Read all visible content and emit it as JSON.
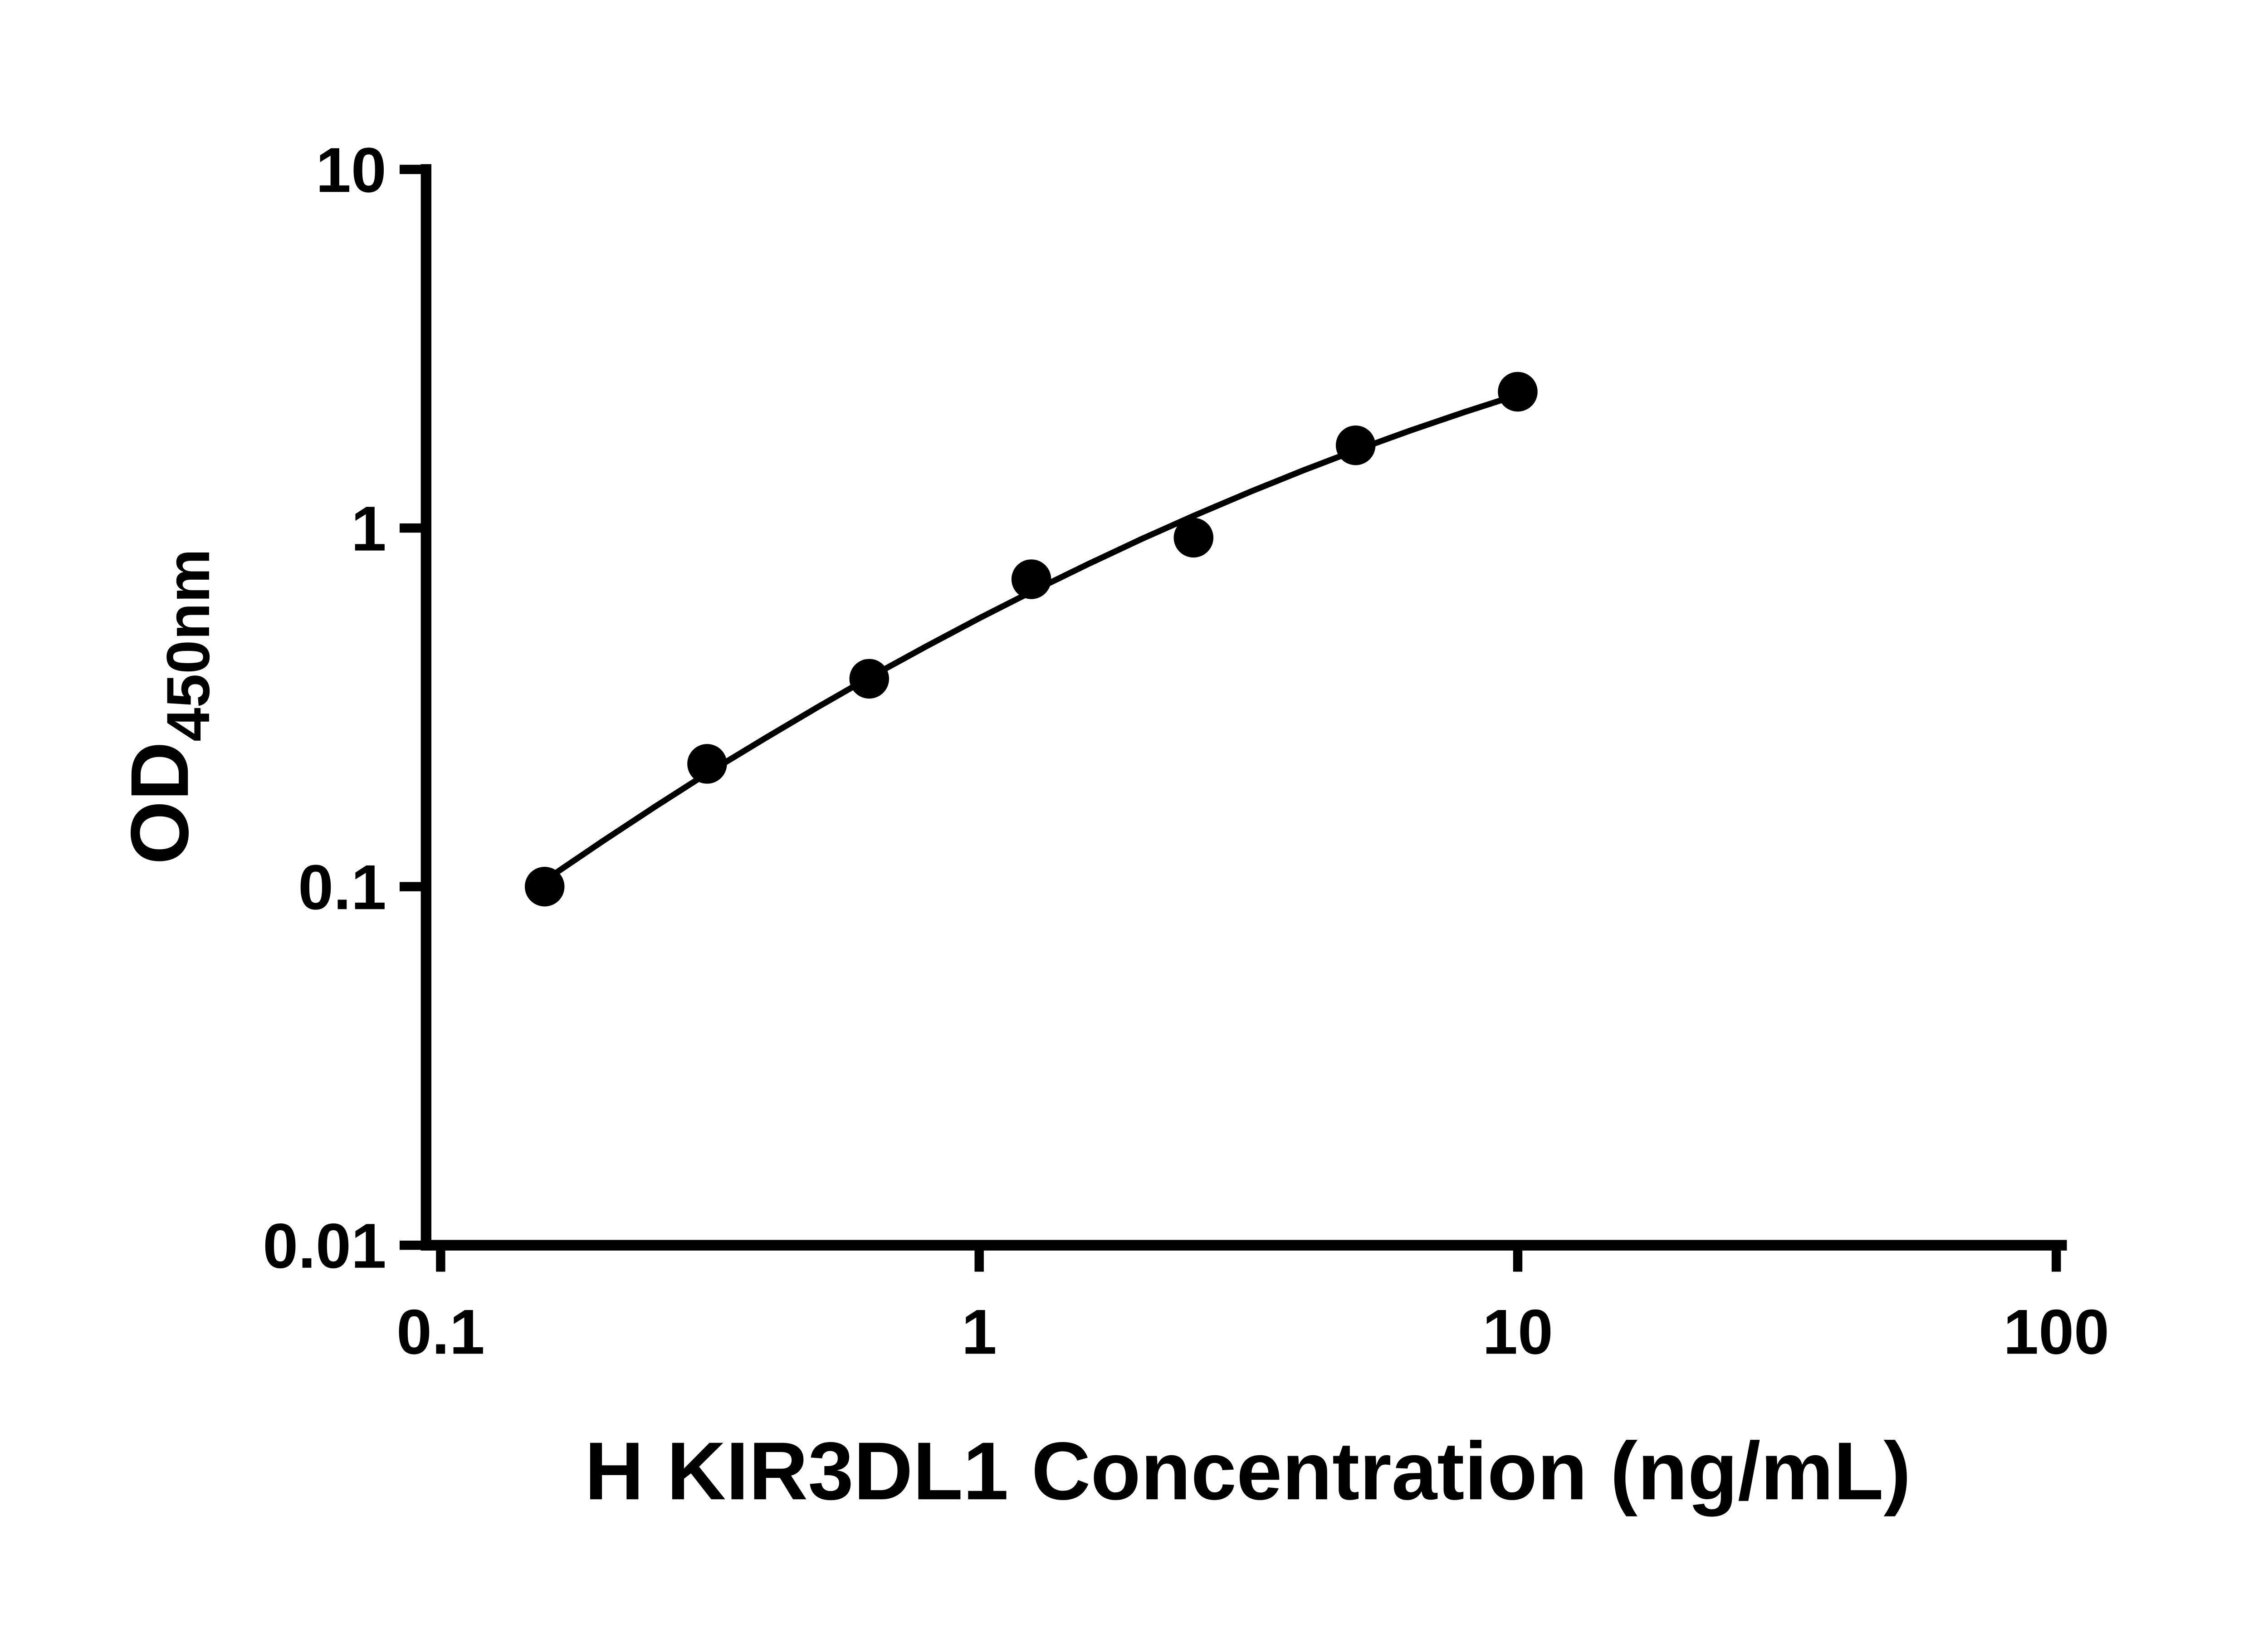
{
  "chart_data": {
    "type": "scatter",
    "title": "",
    "xlabel": "H KIR3DL1 Concentration (ng/mL)",
    "ylabel": "OD450nm",
    "ylabel_main": "OD",
    "ylabel_sub": "450nm",
    "x_scale": "log10",
    "y_scale": "log10",
    "xlim": [
      0.1,
      100
    ],
    "ylim": [
      0.01,
      10
    ],
    "x_ticks": {
      "values": [
        0.1,
        1,
        10,
        100
      ],
      "labels": [
        "0.1",
        "1",
        "10",
        "100"
      ]
    },
    "y_ticks": {
      "values": [
        0.01,
        0.1,
        1,
        10
      ],
      "labels": [
        "0.01",
        "0.1",
        "1",
        "10"
      ]
    },
    "grid": false,
    "legend": "none",
    "marker": {
      "shape": "filled-circle",
      "color": "#000000",
      "radius_px": 15
    },
    "line": {
      "style": "smooth-fit",
      "color": "#000000"
    },
    "points": {
      "x": [
        0.156,
        0.3125,
        0.625,
        1.25,
        2.5,
        5,
        10
      ],
      "y": [
        0.1,
        0.22,
        0.38,
        0.72,
        0.94,
        1.7,
        2.4
      ]
    },
    "fit_curve": {
      "x": [
        0.156,
        0.2,
        0.25,
        0.3125,
        0.4,
        0.5,
        0.625,
        0.8,
        1.0,
        1.25,
        1.6,
        2.0,
        2.5,
        3.2,
        4.0,
        5.0,
        6.3,
        8.0,
        10.0
      ],
      "y": [
        0.104,
        0.134,
        0.167,
        0.207,
        0.259,
        0.316,
        0.383,
        0.469,
        0.56,
        0.664,
        0.796,
        0.931,
        1.081,
        1.265,
        1.448,
        1.647,
        1.867,
        2.111,
        2.35
      ]
    }
  },
  "colors": {
    "background": "#ffffff",
    "foreground": "#000000"
  }
}
